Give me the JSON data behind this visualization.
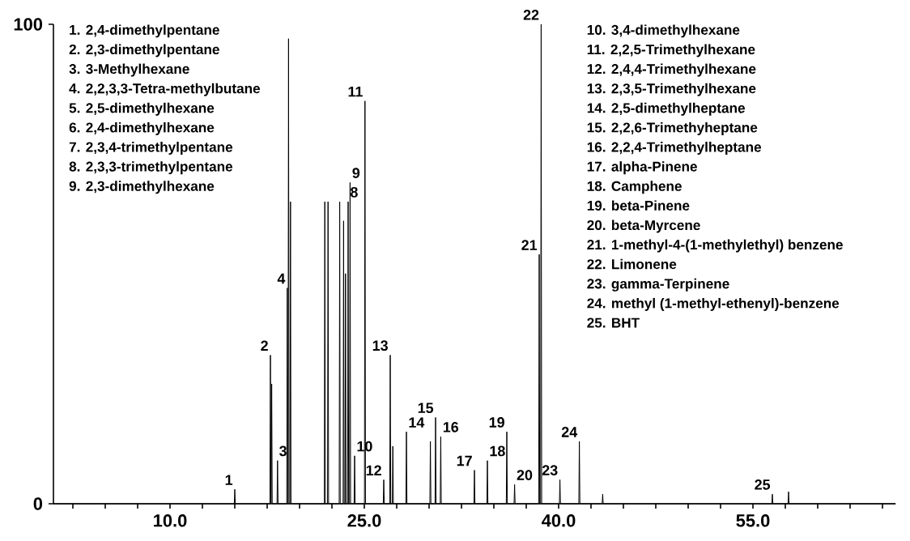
{
  "chart_data": {
    "type": "line",
    "color": "#000000",
    "marker": "none",
    "line_style": "solid",
    "grid": false,
    "xlim": [
      1,
      66
    ],
    "ylim": [
      0,
      100
    ],
    "xticks": [
      {
        "value": 2.5,
        "label": null
      },
      {
        "value": 5,
        "label": null
      },
      {
        "value": 7.5,
        "label": null
      },
      {
        "value": 10,
        "label": "10.0"
      },
      {
        "value": 12.5,
        "label": null
      },
      {
        "value": 15,
        "label": null
      },
      {
        "value": 17.5,
        "label": null
      },
      {
        "value": 20,
        "label": null
      },
      {
        "value": 22.5,
        "label": null
      },
      {
        "value": 25,
        "label": "25.0"
      },
      {
        "value": 27.5,
        "label": null
      },
      {
        "value": 30,
        "label": null
      },
      {
        "value": 32.5,
        "label": null
      },
      {
        "value": 35,
        "label": null
      },
      {
        "value": 37.5,
        "label": null
      },
      {
        "value": 40,
        "label": "40.0"
      },
      {
        "value": 42.5,
        "label": null
      },
      {
        "value": 45,
        "label": null
      },
      {
        "value": 47.5,
        "label": null
      },
      {
        "value": 50,
        "label": null
      },
      {
        "value": 52.5,
        "label": null
      },
      {
        "value": 55,
        "label": "55.0"
      },
      {
        "value": 57.5,
        "label": null
      },
      {
        "value": 60,
        "label": null
      },
      {
        "value": 62.5,
        "label": null
      },
      {
        "value": 65,
        "label": null
      }
    ],
    "yticks": [
      0,
      100
    ],
    "x": [
      1,
      14.96,
      15.0,
      15.04,
      17.71,
      17.75,
      17.79,
      17.81,
      17.85,
      17.89,
      18.26,
      18.3,
      18.34,
      19.01,
      19.05,
      19.09,
      19.11,
      19.15,
      19.19,
      19.26,
      19.3,
      19.34,
      21.91,
      21.95,
      21.99,
      22.16,
      22.2,
      22.24,
      23.06,
      23.1,
      23.14,
      23.36,
      23.4,
      23.44,
      23.51,
      23.55,
      23.59,
      23.71,
      23.75,
      23.79,
      23.86,
      23.9,
      23.94,
      24.21,
      24.25,
      24.29,
      25.01,
      25.05,
      25.09,
      26.46,
      26.5,
      26.54,
      26.96,
      27.0,
      27.04,
      27.16,
      27.2,
      27.24,
      28.21,
      28.25,
      28.29,
      30.06,
      30.1,
      30.14,
      30.46,
      30.5,
      30.54,
      30.86,
      30.9,
      30.94,
      33.46,
      33.5,
      33.54,
      34.46,
      34.5,
      34.54,
      35.96,
      36.0,
      36.04,
      36.56,
      36.6,
      36.64,
      38.46,
      38.5,
      38.54,
      38.61,
      38.65,
      38.69,
      40.06,
      40.1,
      40.14,
      41.56,
      41.6,
      41.64,
      43.36,
      43.4,
      43.44,
      56.46,
      56.5,
      56.54,
      57.71,
      57.75,
      57.79,
      66
    ],
    "values": [
      0,
      0,
      3,
      0,
      0,
      31,
      0,
      0,
      25,
      0,
      0,
      9,
      0,
      0,
      45,
      0,
      0,
      97,
      0,
      0,
      63,
      0,
      0,
      63,
      0,
      0,
      63,
      0,
      0,
      63,
      0,
      0,
      59,
      0,
      0,
      48,
      0,
      0,
      63,
      0,
      0,
      67,
      0,
      0,
      10,
      0,
      0,
      84,
      0,
      0,
      5,
      0,
      0,
      31,
      0,
      0,
      12,
      0,
      0,
      15,
      0,
      0,
      13,
      0,
      0,
      18,
      0,
      0,
      14,
      0,
      0,
      7,
      0,
      0,
      9,
      0,
      0,
      15,
      0,
      0,
      4,
      0,
      0,
      52,
      0,
      0,
      100,
      0,
      0,
      5,
      0,
      0,
      13,
      0,
      0,
      2,
      0,
      0,
      2,
      0,
      0,
      2.5,
      0,
      0
    ],
    "annotations": [
      {
        "text": "1",
        "x": 15.0,
        "y": 3
      },
      {
        "text": "2",
        "x": 17.75,
        "y": 31
      },
      {
        "text": "3",
        "x": 18.3,
        "y": 9
      },
      {
        "text": "4",
        "x": 19.05,
        "y": 45
      },
      {
        "text": "8",
        "x": 23.75,
        "y": 63
      },
      {
        "text": "9",
        "x": 23.9,
        "y": 67
      },
      {
        "text": "10",
        "x": 24.25,
        "y": 10
      },
      {
        "text": "11",
        "x": 25.05,
        "y": 84
      },
      {
        "text": "12",
        "x": 26.5,
        "y": 5
      },
      {
        "text": "13",
        "x": 27.0,
        "y": 31
      },
      {
        "text": "14",
        "x": 28.25,
        "y": 15
      },
      {
        "text": "15",
        "x": 30.5,
        "y": 18
      },
      {
        "text": "16",
        "x": 30.9,
        "y": 14
      },
      {
        "text": "17",
        "x": 33.5,
        "y": 7
      },
      {
        "text": "18",
        "x": 34.5,
        "y": 9
      },
      {
        "text": "19",
        "x": 36.0,
        "y": 15
      },
      {
        "text": "20",
        "x": 36.6,
        "y": 4
      },
      {
        "text": "21",
        "x": 38.5,
        "y": 52
      },
      {
        "text": "22",
        "x": 38.65,
        "y": 100
      },
      {
        "text": "23",
        "x": 40.1,
        "y": 5
      },
      {
        "text": "24",
        "x": 41.6,
        "y": 13
      },
      {
        "text": "25",
        "x": 56.5,
        "y": 2
      },
      "1. 2,4-dimethylpentane",
      "2. 2,3-dimethylpentane",
      "3. 3-Methylhexane",
      "4. 2,2,3,3-Tetra-methylbutane",
      "5. 2,5-dimethylhexane",
      "6. 2,4-dimethylhexane",
      "7. 2,3,4-trimethylpentane",
      "8. 2,3,3-trimethylpentane",
      "9. 2,3-dimethylhexane",
      "10. 3,4-dimethylhexane",
      "11. 2,2,5-Trimethylhexane",
      "12. 2,4,4-Trimethylhexane",
      "13. 2,3,5-Trimethylhexane",
      "14. 2,5-dimethylheptane",
      "15. 2,2,6-Trimethyheptane",
      "16. 2,2,4-Trimethylheptane",
      "17. alpha-Pinene",
      "18. Camphene",
      "19. beta-Pinene",
      "20. beta-Myrcene",
      "21. 1-methyl-4-(1-methylethyl) benzene",
      "22. Limonene",
      "23. gamma-Terpinene",
      "24. methyl (1-methyl-ethenyl)-benzene",
      "25. BHT"
    ]
  }
}
